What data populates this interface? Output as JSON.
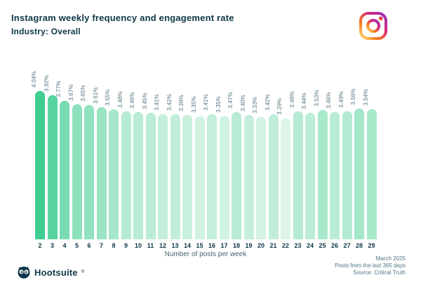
{
  "header": {
    "title": "Instagram weekly frequency and engagement rate",
    "subtitle": "Industry: Overall"
  },
  "chart_data": {
    "type": "bar",
    "title": "Instagram weekly frequency and engagement rate",
    "subtitle": "Industry: Overall",
    "xlabel": "Number of posts per week",
    "ylabel": "",
    "categories": [
      2,
      3,
      4,
      5,
      6,
      7,
      8,
      9,
      10,
      11,
      12,
      13,
      14,
      15,
      16,
      17,
      18,
      19,
      20,
      21,
      22,
      23,
      24,
      25,
      26,
      27,
      28,
      29
    ],
    "values": [
      4.04,
      3.92,
      3.77,
      3.67,
      3.65,
      3.61,
      3.55,
      3.48,
      3.46,
      3.45,
      3.41,
      3.42,
      3.39,
      3.35,
      3.41,
      3.35,
      3.47,
      3.4,
      3.33,
      3.42,
      3.29,
      3.48,
      3.44,
      3.53,
      3.46,
      3.49,
      3.56,
      3.54
    ],
    "value_labels": [
      "4.04%",
      "3.92%",
      "3.77%",
      "3.67%",
      "3.65%",
      "3.61%",
      "3.55%",
      "3.48%",
      "3.46%",
      "3.45%",
      "3.41%",
      "3.42%",
      "3.39%",
      "3.35%",
      "3.41%",
      "3.35%",
      "3.47%",
      "3.40%",
      "3.33%",
      "3.42%",
      "3.29%",
      "3.48%",
      "3.44%",
      "3.53%",
      "3.46%",
      "3.49%",
      "3.56%",
      "3.54%"
    ],
    "ylim": [
      0,
      4.2
    ],
    "grid": false,
    "legend": false,
    "color_scale": {
      "min_value": 3.29,
      "max_value": 4.04,
      "min_color": "#ddf5e8",
      "max_color": "#3fcd92"
    }
  },
  "footer": {
    "logo_text": "Hootsuite",
    "registered_mark": "®",
    "notes": [
      "March 2025",
      "Posts from the last 365 days",
      "Source: Critical Truth"
    ]
  },
  "colors": {
    "title_text": "#0d3748",
    "label_text": "#53737f",
    "axis_text": "#44656f",
    "instagram_gradient": [
      "#feda75",
      "#fa7e1e",
      "#d62976",
      "#962fbf"
    ]
  }
}
